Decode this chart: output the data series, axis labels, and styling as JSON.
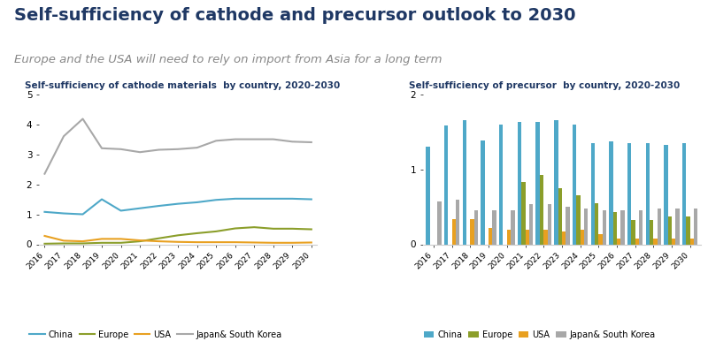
{
  "title": "Self-sufficiency of cathode and precursor outlook to 2030",
  "subtitle": "Europe and the USA will need to rely on import from Asia for a long term",
  "left_chart_title": "Self-sufficiency of cathode materials  by country, 2020-2030",
  "right_chart_title": "Self-sufficiency of precursor  by country, 2020-2030",
  "line_years": [
    2016,
    2017,
    2018,
    2019,
    2020,
    2021,
    2022,
    2023,
    2024,
    2025,
    2026,
    2027,
    2028,
    2029,
    2030
  ],
  "line_china": [
    1.08,
    1.03,
    1.0,
    1.5,
    1.12,
    1.2,
    1.28,
    1.35,
    1.4,
    1.48,
    1.52,
    1.52,
    1.52,
    1.52,
    1.5
  ],
  "line_europe": [
    0.02,
    0.03,
    0.03,
    0.05,
    0.05,
    0.1,
    0.2,
    0.3,
    0.37,
    0.43,
    0.53,
    0.57,
    0.52,
    0.52,
    0.5
  ],
  "line_usa": [
    0.28,
    0.12,
    0.1,
    0.18,
    0.18,
    0.13,
    0.1,
    0.08,
    0.07,
    0.07,
    0.07,
    0.06,
    0.05,
    0.05,
    0.06
  ],
  "line_japan": [
    2.35,
    3.6,
    4.18,
    3.2,
    3.17,
    3.07,
    3.15,
    3.17,
    3.22,
    3.45,
    3.5,
    3.5,
    3.5,
    3.42,
    3.4
  ],
  "bar_years": [
    2016,
    2017,
    2018,
    2019,
    2020,
    2021,
    2022,
    2023,
    2024,
    2025,
    2026,
    2027,
    2028,
    2029,
    2030
  ],
  "bar_china": [
    1.3,
    1.58,
    1.65,
    1.38,
    1.6,
    1.63,
    1.63,
    1.65,
    1.6,
    1.35,
    1.37,
    1.35,
    1.35,
    1.33,
    1.35
  ],
  "bar_europe": [
    0.0,
    0.0,
    0.0,
    0.0,
    0.0,
    0.83,
    0.93,
    0.75,
    0.65,
    0.55,
    0.43,
    0.32,
    0.32,
    0.37,
    0.37
  ],
  "bar_usa": [
    0.0,
    0.33,
    0.33,
    0.22,
    0.2,
    0.2,
    0.2,
    0.17,
    0.2,
    0.13,
    0.08,
    0.08,
    0.08,
    0.08,
    0.08
  ],
  "bar_japan": [
    0.57,
    0.6,
    0.45,
    0.45,
    0.45,
    0.53,
    0.53,
    0.5,
    0.48,
    0.45,
    0.45,
    0.45,
    0.48,
    0.48,
    0.48
  ],
  "color_china": "#4EA8C8",
  "color_europe": "#8B9E2A",
  "color_usa": "#E8A020",
  "color_japan": "#A8A8A8",
  "line_ylim": [
    0,
    5
  ],
  "bar_ylim": [
    0,
    2
  ],
  "background": "#FFFFFF",
  "title_color": "#1F3864",
  "subtitle_color": "#888888",
  "chart_title_color": "#1F3864"
}
